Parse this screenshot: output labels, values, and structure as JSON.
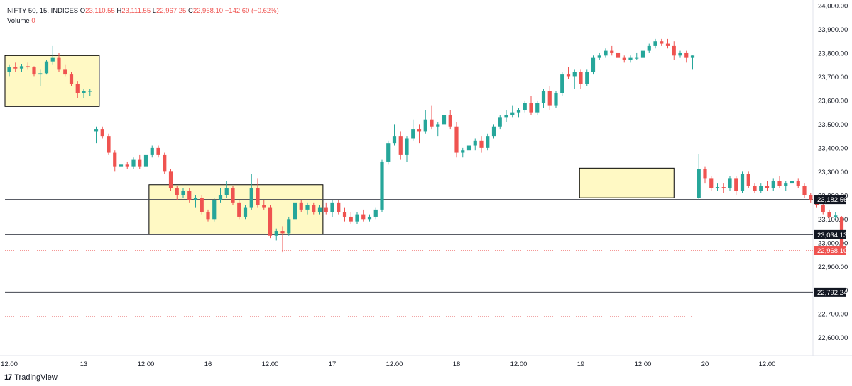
{
  "header": {
    "symbol": "NIFTY 50, 15, INDICES",
    "o_label": "O",
    "o_value": "23,110.55",
    "h_label": "H",
    "h_value": "23,111.55",
    "l_label": "L",
    "l_value": "22,967.25",
    "c_label": "C",
    "c_value": "22,968.10",
    "change": "−142.60 (−0.62%)",
    "volume_label": "Volume",
    "volume_value": "0"
  },
  "brand": {
    "logo": "17",
    "name": "TradingView"
  },
  "colors": {
    "up": "#26a69a",
    "down": "#ef5350",
    "zone_fill": "#fff9c4",
    "zone_border": "#000000",
    "level_line": "#434651",
    "last_price": "#ef5350",
    "grid": "#e0e3eb",
    "text": "#131722"
  },
  "chart_data": {
    "type": "candlestick",
    "title": "NIFTY 50, 15, INDICES",
    "ylim": [
      22520,
      24000
    ],
    "y_ticks": [
      22600,
      22700,
      22800,
      22900,
      23000,
      23100,
      23200,
      23300,
      23400,
      23500,
      23600,
      23700,
      23800,
      23900,
      24000
    ],
    "y_tick_labels": [
      "22,600.00",
      "22,700.00",
      "22,800.00",
      "22,900.00",
      "23,000.00",
      "23,100.00",
      "23,200.00",
      "23,300.00",
      "23,400.00",
      "23,500.00",
      "23,600.00",
      "23,700.00",
      "23,800.00",
      "23,900.00",
      "24,000.00"
    ],
    "time_ticks": [
      {
        "label": "12:00",
        "t": 0
      },
      {
        "label": "13",
        "t": 12
      },
      {
        "label": "12:00",
        "t": 22
      },
      {
        "label": "16",
        "t": 32
      },
      {
        "label": "12:00",
        "t": 42
      },
      {
        "label": "17",
        "t": 52
      },
      {
        "label": "12:00",
        "t": 62
      },
      {
        "label": "18",
        "t": 72
      },
      {
        "label": "12:00",
        "t": 82
      },
      {
        "label": "19",
        "t": 92
      },
      {
        "label": "12:00",
        "t": 102
      },
      {
        "label": "20",
        "t": 112
      },
      {
        "label": "12:00",
        "t": 122
      }
    ],
    "horizontal_levels": [
      {
        "value": 23182.56,
        "label": "23,182.56"
      },
      {
        "value": 23034.13,
        "label": "23,034.13"
      },
      {
        "value": 22792.24,
        "label": "22,792.24"
      }
    ],
    "last_price": {
      "value": 22968.1,
      "label": "22,968.10"
    },
    "dotted_level": {
      "value": 22690
    },
    "zones": [
      {
        "t0": -1,
        "t1": 14.5,
        "top": 23790,
        "bottom": 23575
      },
      {
        "t0": 22.5,
        "t1": 50.5,
        "top": 23245,
        "bottom": 23035
      },
      {
        "t0": 91.8,
        "t1": 107,
        "top": 23315,
        "bottom": 23190
      }
    ],
    "candles": [
      {
        "t": 0,
        "o": 23720,
        "h": 23750,
        "l": 23700,
        "c": 23740
      },
      {
        "t": 1,
        "o": 23740,
        "h": 23760,
        "l": 23720,
        "c": 23735
      },
      {
        "t": 2,
        "o": 23735,
        "h": 23755,
        "l": 23720,
        "c": 23745
      },
      {
        "t": 3,
        "o": 23745,
        "h": 23760,
        "l": 23730,
        "c": 23740
      },
      {
        "t": 4,
        "o": 23740,
        "h": 23745,
        "l": 23700,
        "c": 23710
      },
      {
        "t": 5,
        "o": 23710,
        "h": 23730,
        "l": 23660,
        "c": 23715
      },
      {
        "t": 6,
        "o": 23715,
        "h": 23770,
        "l": 23710,
        "c": 23765
      },
      {
        "t": 7,
        "o": 23765,
        "h": 23830,
        "l": 23750,
        "c": 23780
      },
      {
        "t": 8,
        "o": 23780,
        "h": 23800,
        "l": 23720,
        "c": 23730
      },
      {
        "t": 9,
        "o": 23730,
        "h": 23750,
        "l": 23700,
        "c": 23710
      },
      {
        "t": 10,
        "o": 23710,
        "h": 23720,
        "l": 23660,
        "c": 23670
      },
      {
        "t": 11,
        "o": 23670,
        "h": 23680,
        "l": 23610,
        "c": 23630
      },
      {
        "t": 12,
        "o": 23630,
        "h": 23650,
        "l": 23610,
        "c": 23640
      },
      {
        "t": 13,
        "o": 23640,
        "h": 23650,
        "l": 23620,
        "c": 23640
      },
      {
        "t": 14,
        "o": 23470,
        "h": 23490,
        "l": 23420,
        "c": 23480
      },
      {
        "t": 15,
        "o": 23480,
        "h": 23490,
        "l": 23440,
        "c": 23450
      },
      {
        "t": 16,
        "o": 23450,
        "h": 23460,
        "l": 23370,
        "c": 23380
      },
      {
        "t": 17,
        "o": 23380,
        "h": 23390,
        "l": 23300,
        "c": 23320
      },
      {
        "t": 18,
        "o": 23320,
        "h": 23350,
        "l": 23300,
        "c": 23330
      },
      {
        "t": 19,
        "o": 23330,
        "h": 23340,
        "l": 23310,
        "c": 23320
      },
      {
        "t": 20,
        "o": 23320,
        "h": 23360,
        "l": 23310,
        "c": 23350
      },
      {
        "t": 21,
        "o": 23350,
        "h": 23370,
        "l": 23310,
        "c": 23320
      },
      {
        "t": 22,
        "o": 23320,
        "h": 23380,
        "l": 23310,
        "c": 23370
      },
      {
        "t": 23,
        "o": 23370,
        "h": 23410,
        "l": 23360,
        "c": 23400
      },
      {
        "t": 24,
        "o": 23400,
        "h": 23410,
        "l": 23360,
        "c": 23370
      },
      {
        "t": 25,
        "o": 23370,
        "h": 23380,
        "l": 23290,
        "c": 23300
      },
      {
        "t": 26,
        "o": 23300,
        "h": 23310,
        "l": 23220,
        "c": 23230
      },
      {
        "t": 27,
        "o": 23230,
        "h": 23240,
        "l": 23180,
        "c": 23200
      },
      {
        "t": 28,
        "o": 23200,
        "h": 23230,
        "l": 23190,
        "c": 23220
      },
      {
        "t": 29,
        "o": 23220,
        "h": 23230,
        "l": 23170,
        "c": 23180
      },
      {
        "t": 30,
        "o": 23180,
        "h": 23200,
        "l": 23150,
        "c": 23190
      },
      {
        "t": 31,
        "o": 23190,
        "h": 23200,
        "l": 23120,
        "c": 23130
      },
      {
        "t": 32,
        "o": 23130,
        "h": 23140,
        "l": 23090,
        "c": 23100
      },
      {
        "t": 33,
        "o": 23100,
        "h": 23190,
        "l": 23090,
        "c": 23180
      },
      {
        "t": 34,
        "o": 23180,
        "h": 23230,
        "l": 23170,
        "c": 23200
      },
      {
        "t": 35,
        "o": 23200,
        "h": 23260,
        "l": 23190,
        "c": 23230
      },
      {
        "t": 36,
        "o": 23230,
        "h": 23240,
        "l": 23160,
        "c": 23170
      },
      {
        "t": 37,
        "o": 23170,
        "h": 23180,
        "l": 23100,
        "c": 23110
      },
      {
        "t": 38,
        "o": 23110,
        "h": 23160,
        "l": 23100,
        "c": 23150
      },
      {
        "t": 39,
        "o": 23150,
        "h": 23290,
        "l": 23140,
        "c": 23230
      },
      {
        "t": 40,
        "o": 23230,
        "h": 23270,
        "l": 23150,
        "c": 23160
      },
      {
        "t": 41,
        "o": 23160,
        "h": 23180,
        "l": 23140,
        "c": 23150
      },
      {
        "t": 42,
        "o": 23150,
        "h": 23160,
        "l": 23020,
        "c": 23030
      },
      {
        "t": 43,
        "o": 23030,
        "h": 23060,
        "l": 23010,
        "c": 23050
      },
      {
        "t": 44,
        "o": 23050,
        "h": 23070,
        "l": 22960,
        "c": 23040
      },
      {
        "t": 45,
        "o": 23040,
        "h": 23110,
        "l": 23030,
        "c": 23100
      },
      {
        "t": 46,
        "o": 23100,
        "h": 23180,
        "l": 23090,
        "c": 23170
      },
      {
        "t": 47,
        "o": 23170,
        "h": 23180,
        "l": 23130,
        "c": 23140
      },
      {
        "t": 48,
        "o": 23140,
        "h": 23170,
        "l": 23120,
        "c": 23160
      },
      {
        "t": 49,
        "o": 23160,
        "h": 23170,
        "l": 23120,
        "c": 23130
      },
      {
        "t": 50,
        "o": 23130,
        "h": 23160,
        "l": 23120,
        "c": 23150
      },
      {
        "t": 51,
        "o": 23150,
        "h": 23170,
        "l": 23120,
        "c": 23130
      },
      {
        "t": 52,
        "o": 23130,
        "h": 23180,
        "l": 23110,
        "c": 23170
      },
      {
        "t": 53,
        "o": 23170,
        "h": 23180,
        "l": 23120,
        "c": 23130
      },
      {
        "t": 54,
        "o": 23130,
        "h": 23150,
        "l": 23090,
        "c": 23110
      },
      {
        "t": 55,
        "o": 23110,
        "h": 23130,
        "l": 23080,
        "c": 23090
      },
      {
        "t": 56,
        "o": 23090,
        "h": 23130,
        "l": 23080,
        "c": 23120
      },
      {
        "t": 57,
        "o": 23120,
        "h": 23140,
        "l": 23090,
        "c": 23100
      },
      {
        "t": 58,
        "o": 23100,
        "h": 23120,
        "l": 23090,
        "c": 23110
      },
      {
        "t": 59,
        "o": 23110,
        "h": 23150,
        "l": 23100,
        "c": 23140
      },
      {
        "t": 60,
        "o": 23140,
        "h": 23350,
        "l": 23130,
        "c": 23340
      },
      {
        "t": 61,
        "o": 23340,
        "h": 23430,
        "l": 23330,
        "c": 23420
      },
      {
        "t": 62,
        "o": 23420,
        "h": 23500,
        "l": 23410,
        "c": 23450
      },
      {
        "t": 63,
        "o": 23450,
        "h": 23470,
        "l": 23350,
        "c": 23370
      },
      {
        "t": 64,
        "o": 23370,
        "h": 23450,
        "l": 23340,
        "c": 23440
      },
      {
        "t": 65,
        "o": 23440,
        "h": 23520,
        "l": 23430,
        "c": 23480
      },
      {
        "t": 66,
        "o": 23480,
        "h": 23500,
        "l": 23420,
        "c": 23470
      },
      {
        "t": 67,
        "o": 23470,
        "h": 23560,
        "l": 23460,
        "c": 23520
      },
      {
        "t": 68,
        "o": 23520,
        "h": 23580,
        "l": 23480,
        "c": 23490
      },
      {
        "t": 69,
        "o": 23490,
        "h": 23510,
        "l": 23450,
        "c": 23500
      },
      {
        "t": 70,
        "o": 23500,
        "h": 23560,
        "l": 23490,
        "c": 23540
      },
      {
        "t": 71,
        "o": 23540,
        "h": 23560,
        "l": 23480,
        "c": 23490
      },
      {
        "t": 72,
        "o": 23490,
        "h": 23510,
        "l": 23360,
        "c": 23380
      },
      {
        "t": 73,
        "o": 23380,
        "h": 23400,
        "l": 23360,
        "c": 23390
      },
      {
        "t": 74,
        "o": 23390,
        "h": 23420,
        "l": 23380,
        "c": 23410
      },
      {
        "t": 75,
        "o": 23410,
        "h": 23440,
        "l": 23390,
        "c": 23430
      },
      {
        "t": 76,
        "o": 23430,
        "h": 23450,
        "l": 23380,
        "c": 23400
      },
      {
        "t": 77,
        "o": 23400,
        "h": 23460,
        "l": 23390,
        "c": 23450
      },
      {
        "t": 78,
        "o": 23450,
        "h": 23500,
        "l": 23440,
        "c": 23490
      },
      {
        "t": 79,
        "o": 23490,
        "h": 23540,
        "l": 23480,
        "c": 23530
      },
      {
        "t": 80,
        "o": 23530,
        "h": 23560,
        "l": 23510,
        "c": 23540
      },
      {
        "t": 81,
        "o": 23540,
        "h": 23580,
        "l": 23530,
        "c": 23550
      },
      {
        "t": 82,
        "o": 23550,
        "h": 23570,
        "l": 23530,
        "c": 23560
      },
      {
        "t": 83,
        "o": 23560,
        "h": 23600,
        "l": 23550,
        "c": 23590
      },
      {
        "t": 84,
        "o": 23590,
        "h": 23620,
        "l": 23540,
        "c": 23550
      },
      {
        "t": 85,
        "o": 23550,
        "h": 23600,
        "l": 23540,
        "c": 23590
      },
      {
        "t": 86,
        "o": 23590,
        "h": 23650,
        "l": 23570,
        "c": 23640
      },
      {
        "t": 87,
        "o": 23640,
        "h": 23660,
        "l": 23560,
        "c": 23580
      },
      {
        "t": 88,
        "o": 23580,
        "h": 23640,
        "l": 23570,
        "c": 23630
      },
      {
        "t": 89,
        "o": 23630,
        "h": 23720,
        "l": 23620,
        "c": 23710
      },
      {
        "t": 90,
        "o": 23710,
        "h": 23740,
        "l": 23690,
        "c": 23700
      },
      {
        "t": 91,
        "o": 23700,
        "h": 23730,
        "l": 23650,
        "c": 23720
      },
      {
        "t": 92,
        "o": 23720,
        "h": 23730,
        "l": 23650,
        "c": 23670
      },
      {
        "t": 93,
        "o": 23670,
        "h": 23730,
        "l": 23660,
        "c": 23720
      },
      {
        "t": 94,
        "o": 23720,
        "h": 23790,
        "l": 23710,
        "c": 23780
      },
      {
        "t": 95,
        "o": 23780,
        "h": 23800,
        "l": 23770,
        "c": 23790
      },
      {
        "t": 96,
        "o": 23790,
        "h": 23820,
        "l": 23780,
        "c": 23810
      },
      {
        "t": 97,
        "o": 23810,
        "h": 23830,
        "l": 23790,
        "c": 23800
      },
      {
        "t": 98,
        "o": 23800,
        "h": 23810,
        "l": 23770,
        "c": 23780
      },
      {
        "t": 99,
        "o": 23780,
        "h": 23790,
        "l": 23760,
        "c": 23770
      },
      {
        "t": 100,
        "o": 23770,
        "h": 23790,
        "l": 23760,
        "c": 23780
      },
      {
        "t": 101,
        "o": 23780,
        "h": 23800,
        "l": 23770,
        "c": 23780
      },
      {
        "t": 102,
        "o": 23780,
        "h": 23820,
        "l": 23770,
        "c": 23810
      },
      {
        "t": 103,
        "o": 23810,
        "h": 23840,
        "l": 23800,
        "c": 23830
      },
      {
        "t": 104,
        "o": 23830,
        "h": 23860,
        "l": 23820,
        "c": 23850
      },
      {
        "t": 105,
        "o": 23850,
        "h": 23860,
        "l": 23830,
        "c": 23840
      },
      {
        "t": 106,
        "o": 23840,
        "h": 23860,
        "l": 23820,
        "c": 23830
      },
      {
        "t": 107,
        "o": 23830,
        "h": 23850,
        "l": 23770,
        "c": 23790
      },
      {
        "t": 108,
        "o": 23790,
        "h": 23810,
        "l": 23780,
        "c": 23800
      },
      {
        "t": 109,
        "o": 23800,
        "h": 23810,
        "l": 23760,
        "c": 23780
      },
      {
        "t": 110,
        "o": 23780,
        "h": 23790,
        "l": 23730,
        "c": 23790
      },
      {
        "t": 111,
        "o": 23190,
        "h": 23375,
        "l": 23180,
        "c": 23310
      },
      {
        "t": 112,
        "o": 23310,
        "h": 23320,
        "l": 23250,
        "c": 23270
      },
      {
        "t": 113,
        "o": 23270,
        "h": 23280,
        "l": 23220,
        "c": 23230
      },
      {
        "t": 114,
        "o": 23230,
        "h": 23250,
        "l": 23220,
        "c": 23235
      },
      {
        "t": 115,
        "o": 23235,
        "h": 23250,
        "l": 23210,
        "c": 23230
      },
      {
        "t": 116,
        "o": 23230,
        "h": 23280,
        "l": 23220,
        "c": 23270
      },
      {
        "t": 117,
        "o": 23270,
        "h": 23280,
        "l": 23200,
        "c": 23220
      },
      {
        "t": 118,
        "o": 23220,
        "h": 23300,
        "l": 23210,
        "c": 23290
      },
      {
        "t": 119,
        "o": 23290,
        "h": 23300,
        "l": 23230,
        "c": 23240
      },
      {
        "t": 120,
        "o": 23240,
        "h": 23250,
        "l": 23210,
        "c": 23220
      },
      {
        "t": 121,
        "o": 23220,
        "h": 23250,
        "l": 23210,
        "c": 23240
      },
      {
        "t": 122,
        "o": 23240,
        "h": 23260,
        "l": 23220,
        "c": 23230
      },
      {
        "t": 123,
        "o": 23230,
        "h": 23270,
        "l": 23220,
        "c": 23260
      },
      {
        "t": 124,
        "o": 23260,
        "h": 23280,
        "l": 23230,
        "c": 23240
      },
      {
        "t": 125,
        "o": 23240,
        "h": 23260,
        "l": 23220,
        "c": 23250
      },
      {
        "t": 126,
        "o": 23250,
        "h": 23270,
        "l": 23230,
        "c": 23260
      },
      {
        "t": 127,
        "o": 23260,
        "h": 23270,
        "l": 23230,
        "c": 23240
      },
      {
        "t": 128,
        "o": 23240,
        "h": 23250,
        "l": 23190,
        "c": 23200
      },
      {
        "t": 129,
        "o": 23200,
        "h": 23210,
        "l": 23170,
        "c": 23180
      },
      {
        "t": 130,
        "o": 23180,
        "h": 23190,
        "l": 23150,
        "c": 23160
      },
      {
        "t": 131,
        "o": 23160,
        "h": 23170,
        "l": 23120,
        "c": 23130
      },
      {
        "t": 132,
        "o": 23130,
        "h": 23140,
        "l": 23100,
        "c": 23110
      },
      {
        "t": 133,
        "o": 23110,
        "h": 23130,
        "l": 23100,
        "c": 23115
      },
      {
        "t": 134,
        "o": 23110,
        "h": 23112,
        "l": 22967,
        "c": 22968
      }
    ]
  }
}
